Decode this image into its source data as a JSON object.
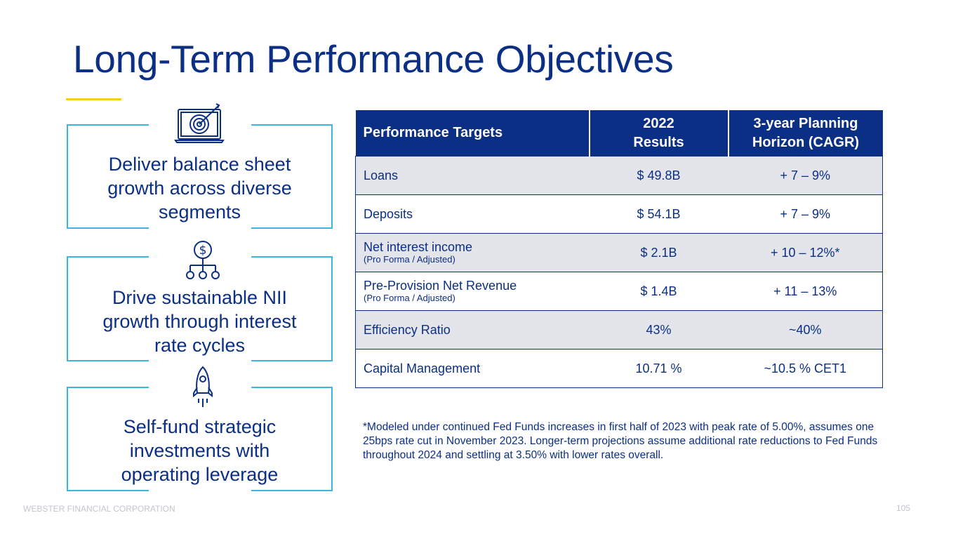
{
  "slide": {
    "title": "Long-Term Performance Objectives",
    "accent_color": "#f6cf1b",
    "primary_color": "#0b2f84",
    "box_border_color": "#39b7de"
  },
  "objectives": [
    {
      "icon": "laptop-target-icon",
      "lines": [
        "Deliver balance sheet",
        "growth across diverse",
        "segments"
      ]
    },
    {
      "icon": "dollar-network-icon",
      "lines": [
        "Drive sustainable NII",
        "growth through interest",
        "rate cycles"
      ]
    },
    {
      "icon": "rocket-icon",
      "lines": [
        "Self-fund strategic",
        "investments with",
        "operating leverage"
      ]
    }
  ],
  "table": {
    "headers": {
      "col1": "Performance Targets",
      "col2_line1": "2022",
      "col2_line2": "Results",
      "col3_line1": "3-year Planning",
      "col3_line2": "Horizon (CAGR)"
    },
    "rows": [
      {
        "label": "Loans",
        "sub": "",
        "result": "$ 49.8B",
        "target": "+ 7 – 9%"
      },
      {
        "label": "Deposits",
        "sub": "",
        "result": "$ 54.1B",
        "target": "+ 7 – 9%"
      },
      {
        "label": "Net interest income",
        "sub": "(Pro Forma / Adjusted)",
        "result": "$ 2.1B",
        "target": "+ 10 – 12%*"
      },
      {
        "label": "Pre-Provision Net Revenue",
        "sub": "(Pro Forma / Adjusted)",
        "result": "$ 1.4B",
        "target": "+ 11 – 13%"
      },
      {
        "label": "Efficiency Ratio",
        "sub": "",
        "result": "43%",
        "target": "~40%"
      },
      {
        "label": "Capital Management",
        "sub": "",
        "result": "10.71 %",
        "target": "~10.5 % CET1"
      }
    ]
  },
  "footnote": "*Modeled under continued Fed Funds increases in first half of 2023 with peak rate of 5.00%, assumes one 25bps rate cut in November 2023. Longer-term projections assume additional rate reductions to Fed Funds throughout 2024 and settling at 3.50% with lower rates overall.",
  "footer": {
    "company": "WEBSTER FINANCIAL CORPORATION",
    "page_number": "105"
  }
}
